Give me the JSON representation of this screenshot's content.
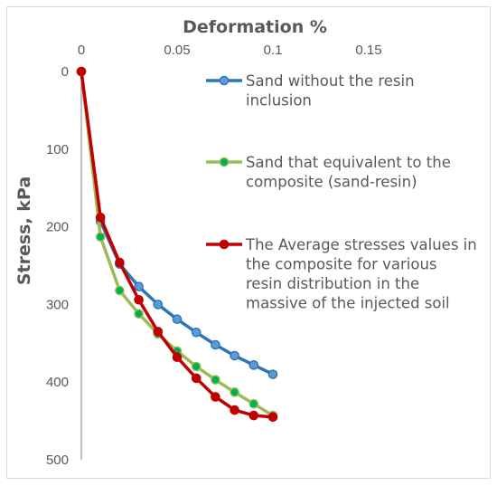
{
  "chart_data": {
    "type": "line",
    "title": "",
    "xlabel": "Deformation %",
    "ylabel": "Stress, kPa",
    "x_axis_position": "top",
    "y_axis_inverted": true,
    "xlim": [
      0,
      0.15
    ],
    "ylim": [
      0,
      500
    ],
    "xticks": [
      0,
      0.05,
      0.1,
      0.15
    ],
    "xtick_labels": [
      "0",
      "0.05",
      "0.1",
      "0.15"
    ],
    "yticks": [
      0,
      100,
      200,
      300,
      400,
      500
    ],
    "ytick_labels": [
      "0",
      "100",
      "200",
      "300",
      "400",
      "500"
    ],
    "grid": false,
    "legend_position": "right",
    "series": [
      {
        "name": "Sand without the resin inclusion",
        "legend_lines": [
          "Sand without the resin",
          "inclusion"
        ],
        "line_color": "#2e75b6",
        "marker_color": "#5b9bd5",
        "x": [
          0,
          0.01,
          0.02,
          0.03,
          0.04,
          0.05,
          0.06,
          0.07,
          0.08,
          0.09,
          0.1
        ],
        "y": [
          0,
          193,
          248,
          277,
          300,
          319,
          336,
          352,
          366,
          378,
          390
        ]
      },
      {
        "name": "Sand that equivalent to the composite (sand-resin)",
        "legend_lines": [
          "Sand that equivalent to the",
          "composite (sand-resin)"
        ],
        "line_color": "#9bbb59",
        "marker_color": "#00b050",
        "x": [
          0,
          0.01,
          0.02,
          0.03,
          0.04,
          0.05,
          0.06,
          0.07,
          0.08,
          0.09,
          0.1
        ],
        "y": [
          0,
          213,
          282,
          312,
          338,
          360,
          380,
          397,
          413,
          428,
          443
        ]
      },
      {
        "name": "The Average stresses values in the composite for various resin distribution in the massive of the injected soil",
        "legend_lines": [
          "The Average stresses values in",
          "the composite for various",
          "resin distribution in the",
          "massive of the injected soil"
        ],
        "line_color": "#c00000",
        "marker_color": "#c00000",
        "x": [
          0,
          0.01,
          0.02,
          0.03,
          0.04,
          0.05,
          0.06,
          0.07,
          0.08,
          0.09,
          0.1
        ],
        "y": [
          0,
          188,
          246,
          294,
          335,
          368,
          395,
          419,
          436,
          443,
          445
        ]
      }
    ]
  }
}
